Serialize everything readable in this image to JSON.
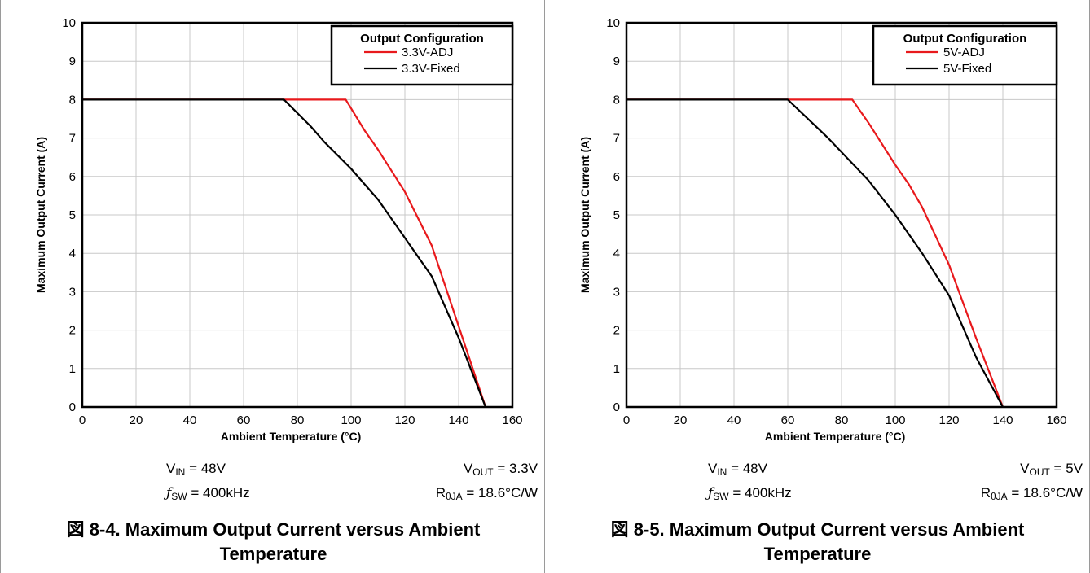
{
  "panels": [
    {
      "conditions": {
        "vin": {
          "sym": "V",
          "sub": "IN",
          "rest": " = 48V"
        },
        "vout": {
          "sym": "V",
          "sub": "OUT",
          "rest": " = 3.3V"
        },
        "fsw": {
          "sym": "ƒ",
          "sub": "SW",
          "rest": " = 400kHz"
        },
        "rth": {
          "sym": "R",
          "sub": "θJA",
          "rest": " = 18.6°C/W"
        }
      },
      "caption_line1": "図 8-4. Maximum Output Current versus Ambient",
      "caption_line2": "Temperature"
    },
    {
      "conditions": {
        "vin": {
          "sym": "V",
          "sub": "IN",
          "rest": " = 48V"
        },
        "vout": {
          "sym": "V",
          "sub": "OUT",
          "rest": " = 5V"
        },
        "fsw": {
          "sym": "ƒ",
          "sub": "SW",
          "rest": " = 400kHz"
        },
        "rth": {
          "sym": "R",
          "sub": "θJA",
          "rest": " = 18.6°C/W"
        }
      },
      "caption_line1": "図 8-5. Maximum Output Current versus Ambient",
      "caption_line2": "Temperature"
    }
  ],
  "chart_data": [
    {
      "type": "line",
      "xlabel": "Ambient Temperature (°C)",
      "ylabel": "Maximum Output Current (A)",
      "xlim": [
        0,
        160
      ],
      "ylim": [
        0,
        10
      ],
      "xticks": [
        0,
        20,
        40,
        60,
        80,
        100,
        120,
        140,
        160
      ],
      "yticks": [
        0,
        1,
        2,
        3,
        4,
        5,
        6,
        7,
        8,
        9,
        10
      ],
      "grid": true,
      "legend": {
        "title": "Output Configuration",
        "placement": "top-right"
      },
      "series": [
        {
          "name": "3.3V-ADJ",
          "color": "#e8191c",
          "points": [
            [
              0,
              8
            ],
            [
              98,
              8
            ],
            [
              105,
              7.2
            ],
            [
              110,
              6.7
            ],
            [
              120,
              5.6
            ],
            [
              130,
              4.2
            ],
            [
              140,
              2.1
            ],
            [
              150,
              0
            ]
          ]
        },
        {
          "name": "3.3V-Fixed",
          "color": "#000000",
          "points": [
            [
              0,
              8
            ],
            [
              75,
              8
            ],
            [
              85,
              7.3
            ],
            [
              90,
              6.9
            ],
            [
              100,
              6.2
            ],
            [
              110,
              5.4
            ],
            [
              120,
              4.4
            ],
            [
              130,
              3.4
            ],
            [
              140,
              1.8
            ],
            [
              150,
              0
            ]
          ]
        }
      ]
    },
    {
      "type": "line",
      "xlabel": "Ambient Temperature (°C)",
      "ylabel": "Maximum Output Current (A)",
      "xlim": [
        0,
        160
      ],
      "ylim": [
        0,
        10
      ],
      "xticks": [
        0,
        20,
        40,
        60,
        80,
        100,
        120,
        140,
        160
      ],
      "yticks": [
        0,
        1,
        2,
        3,
        4,
        5,
        6,
        7,
        8,
        9,
        10
      ],
      "grid": true,
      "legend": {
        "title": "Output Configuration",
        "placement": "top-right"
      },
      "series": [
        {
          "name": "5V-ADJ",
          "color": "#e8191c",
          "points": [
            [
              0,
              8
            ],
            [
              84,
              8
            ],
            [
              90,
              7.4
            ],
            [
              100,
              6.3
            ],
            [
              105,
              5.8
            ],
            [
              110,
              5.2
            ],
            [
              120,
              3.7
            ],
            [
              130,
              1.8
            ],
            [
              140,
              0
            ]
          ]
        },
        {
          "name": "5V-Fixed",
          "color": "#000000",
          "points": [
            [
              0,
              8
            ],
            [
              60,
              8
            ],
            [
              75,
              7
            ],
            [
              90,
              5.9
            ],
            [
              100,
              5
            ],
            [
              110,
              4
            ],
            [
              120,
              2.9
            ],
            [
              130,
              1.3
            ],
            [
              140,
              0
            ]
          ]
        }
      ]
    }
  ]
}
